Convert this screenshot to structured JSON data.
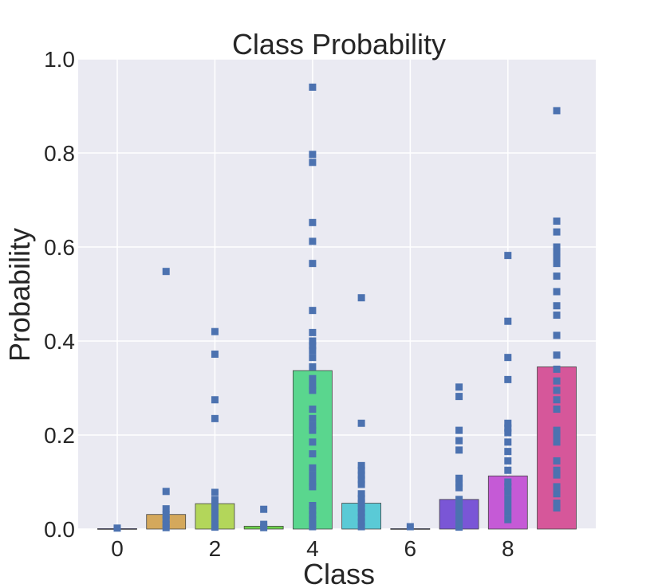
{
  "chart_data": {
    "type": "bar",
    "title": "Class Probability",
    "xlabel": "Class",
    "ylabel": "Probability",
    "xlim": [
      -0.8,
      9.8
    ],
    "ylim": [
      0,
      1.0
    ],
    "xticks": [
      0,
      2,
      4,
      6,
      8
    ],
    "xtick_labels": [
      "0",
      "2",
      "4",
      "6",
      "8"
    ],
    "yticks": [
      0.0,
      0.2,
      0.4,
      0.6,
      0.8,
      1.0
    ],
    "ytick_labels": [
      "0.0",
      "0.2",
      "0.4",
      "0.6",
      "0.8",
      "1.0"
    ],
    "grid": true,
    "categories": [
      0,
      1,
      2,
      3,
      4,
      5,
      6,
      7,
      8,
      9
    ],
    "values": [
      0.001,
      0.031,
      0.054,
      0.006,
      0.337,
      0.055,
      0.001,
      0.063,
      0.113,
      0.345
    ],
    "bar_colors": [
      "#6a6ad0",
      "#d4a85c",
      "#b3d65a",
      "#6bd04a",
      "#5ad68e",
      "#5acad6",
      "#7c86d6",
      "#7a56d6",
      "#c55ad6",
      "#d6579a"
    ],
    "marker_color": "#4c72b0",
    "background_color": "#eaeaf2",
    "points": [
      [
        0.002
      ],
      [
        0.548,
        0.08,
        0.043,
        0.03,
        0.02,
        0.01,
        0.003
      ],
      [
        0.42,
        0.372,
        0.275,
        0.235,
        0.078,
        0.062,
        0.048,
        0.035,
        0.022,
        0.01,
        0.004
      ],
      [
        0.042,
        0.01,
        0.003
      ],
      [
        0.94,
        0.797,
        0.78,
        0.652,
        0.612,
        0.565,
        0.465,
        0.418,
        0.4,
        0.39,
        0.38,
        0.365,
        0.345,
        0.32,
        0.305,
        0.295,
        0.255,
        0.235,
        0.22,
        0.21,
        0.185,
        0.16,
        0.13,
        0.115,
        0.1,
        0.09,
        0.05,
        0.04,
        0.03,
        0.02,
        0.012,
        0.005
      ],
      [
        0.492,
        0.225,
        0.135,
        0.125,
        0.115,
        0.105,
        0.095,
        0.075,
        0.065,
        0.055,
        0.045,
        0.035,
        0.025,
        0.015,
        0.005
      ],
      [
        0.005
      ],
      [
        0.302,
        0.282,
        0.21,
        0.188,
        0.168,
        0.108,
        0.098,
        0.088,
        0.063,
        0.05,
        0.04,
        0.03,
        0.02,
        0.01,
        0.004
      ],
      [
        0.582,
        0.442,
        0.365,
        0.318,
        0.225,
        0.215,
        0.205,
        0.185,
        0.165,
        0.145,
        0.125,
        0.1,
        0.09,
        0.08,
        0.065,
        0.05,
        0.035,
        0.02
      ],
      [
        0.89,
        0.655,
        0.632,
        0.6,
        0.59,
        0.578,
        0.565,
        0.538,
        0.505,
        0.475,
        0.455,
        0.412,
        0.37,
        0.34,
        0.315,
        0.295,
        0.275,
        0.255,
        0.21,
        0.2,
        0.185,
        0.145,
        0.125,
        0.115,
        0.09,
        0.075,
        0.055,
        0.045
      ]
    ]
  }
}
